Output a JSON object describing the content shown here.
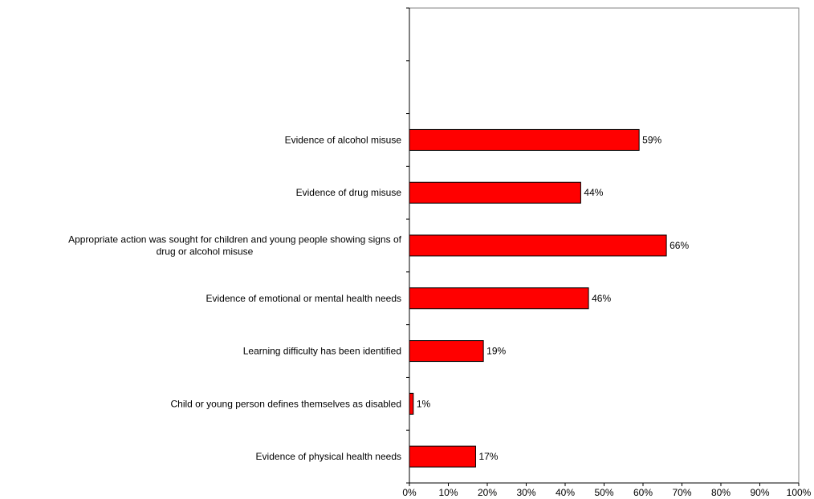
{
  "chart_data": {
    "type": "bar",
    "orientation": "horizontal",
    "categories": [
      [
        "Evidence of alcohol misuse"
      ],
      [
        "Evidence of drug misuse"
      ],
      [
        "Appropriate action was sought for children and young people showing signs of",
        "drug or alcohol misuse"
      ],
      [
        "Evidence of emotional or mental health needs"
      ],
      [
        "Learning difficulty has been identified"
      ],
      [
        "Child or young person defines themselves as disabled"
      ],
      [
        "Evidence of physical health needs"
      ]
    ],
    "values": [
      59,
      44,
      66,
      46,
      19,
      1,
      17
    ],
    "value_labels": [
      "59%",
      "44%",
      "66%",
      "46%",
      "19%",
      "1%",
      "17%"
    ],
    "xlim": [
      0,
      100
    ],
    "x_ticks": [
      "0%",
      "10%",
      "20%",
      "30%",
      "40%",
      "50%",
      "60%",
      "70%",
      "80%",
      "90%",
      "100%"
    ],
    "bar_color": "#ff0000",
    "bar_edge_color": "#000000",
    "grid": false,
    "legend": "none",
    "empty_category_slots_above": 2
  }
}
